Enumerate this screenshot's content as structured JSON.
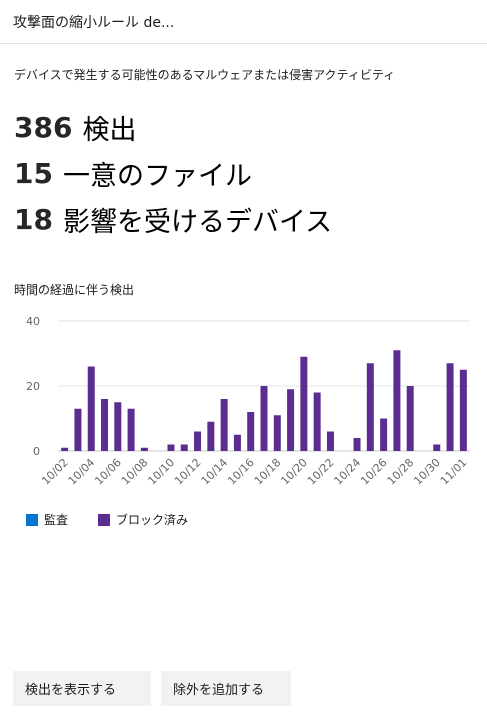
{
  "header": {
    "title": "攻撃面の縮小ルール de..."
  },
  "description": "デバイスで発生する可能性のあるマルウェアまたは侵害アクティビティ",
  "stats": [
    {
      "value": "386",
      "label": "検出"
    },
    {
      "value": "15",
      "label": "一意のファイル"
    },
    {
      "value": "18",
      "label": "影響を受けるデバイス"
    }
  ],
  "chart_section": {
    "title": "時間の経過に伴う検出"
  },
  "legend": [
    {
      "label": "監査",
      "color": "#0078d4"
    },
    {
      "label": "ブロック済み",
      "color": "#5c2d91"
    }
  ],
  "actions": {
    "view_detections": "検出を表示する",
    "add_exclusion": "除外を追加する"
  },
  "chart_data": {
    "type": "bar",
    "title": "時間の経過に伴う検出",
    "xlabel": "",
    "ylabel": "",
    "ylim": [
      0,
      40
    ],
    "yticks": [
      0,
      20,
      40
    ],
    "grid": true,
    "legend_position": "bottom-left",
    "categories": [
      "10/02",
      "10/03",
      "10/04",
      "10/05",
      "10/06",
      "10/07",
      "10/08",
      "10/09",
      "10/10",
      "10/11",
      "10/12",
      "10/13",
      "10/14",
      "10/15",
      "10/16",
      "10/17",
      "10/18",
      "10/19",
      "10/20",
      "10/21",
      "10/22",
      "10/23",
      "10/24",
      "10/25",
      "10/26",
      "10/27",
      "10/28",
      "10/29",
      "10/30",
      "10/31",
      "11/01"
    ],
    "tick_labels": [
      "10/02",
      "10/04",
      "10/06",
      "10/08",
      "10/10",
      "10/12",
      "10/14",
      "10/16",
      "10/18",
      "10/20",
      "10/22",
      "10/24",
      "10/26",
      "10/28",
      "10/30",
      "11/01"
    ],
    "series": [
      {
        "name": "監査",
        "color": "#0078d4",
        "values": [
          0,
          0,
          0,
          0,
          0,
          0,
          0,
          0,
          0,
          0,
          0,
          0,
          0,
          0,
          0,
          0,
          0,
          0,
          0,
          0,
          0,
          0,
          0,
          0,
          0,
          0,
          0,
          0,
          0,
          0,
          0
        ]
      },
      {
        "name": "ブロック済み",
        "color": "#5c2d91",
        "values": [
          1,
          13,
          26,
          16,
          15,
          13,
          1,
          0,
          2,
          2,
          6,
          9,
          16,
          5,
          12,
          20,
          11,
          19,
          29,
          18,
          6,
          0,
          4,
          27,
          10,
          31,
          20,
          0,
          2,
          27,
          25
        ]
      }
    ]
  }
}
